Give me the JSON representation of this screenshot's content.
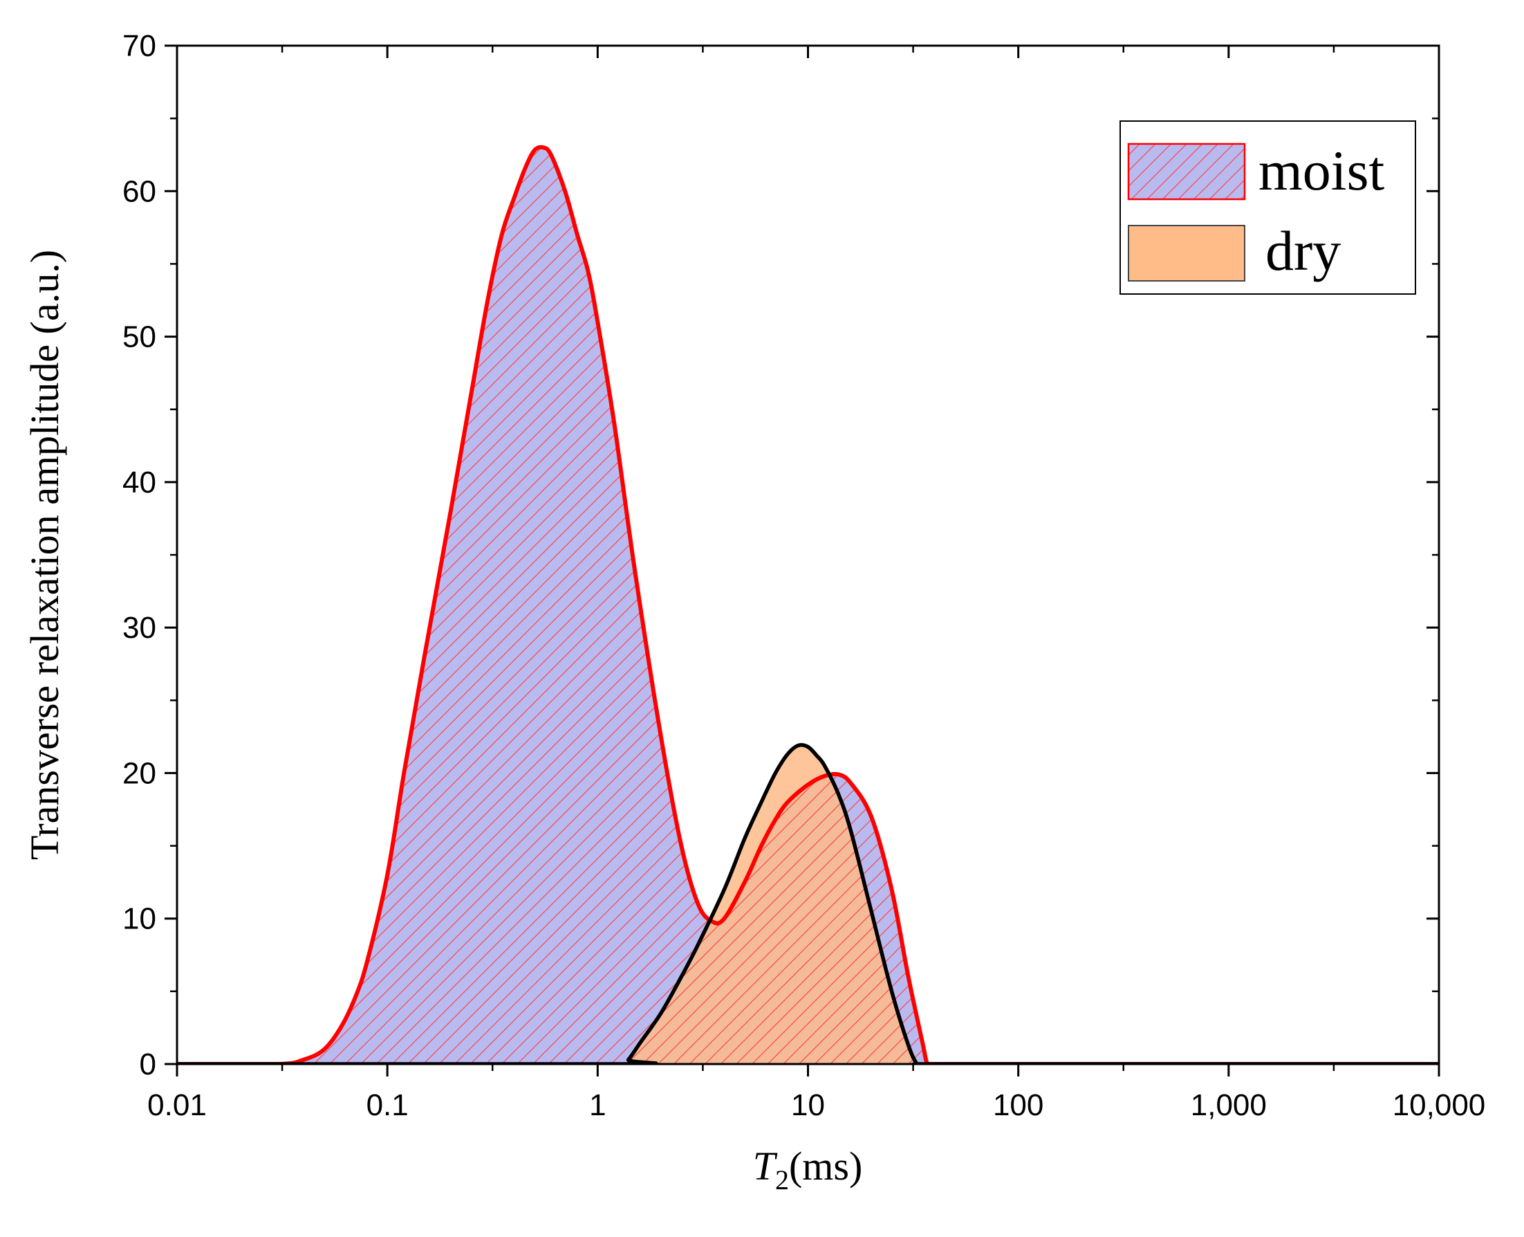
{
  "chart_data": {
    "type": "area",
    "xscale": "log",
    "xlim": [
      0.01,
      10000
    ],
    "ylim": [
      0,
      70
    ],
    "xticks": [
      0.01,
      0.1,
      1,
      10,
      100,
      1000,
      10000
    ],
    "xtick_labels": [
      "0.01",
      "0.1",
      "1",
      "10",
      "100",
      "1,000",
      "10,000"
    ],
    "yticks": [
      0,
      10,
      20,
      30,
      40,
      50,
      60,
      70
    ],
    "ytick_labels": [
      "0",
      "10",
      "20",
      "30",
      "40",
      "50",
      "60",
      "70"
    ],
    "xlabel_italic": "T",
    "xlabel_subscript": "2",
    "xlabel_rest": "(ms)",
    "ylabel": "Transverse relaxation amplitude (a.u.)",
    "legend_position": "top-right",
    "grid": false,
    "series": [
      {
        "name": "moist",
        "line_color": "#ff0000",
        "fill_color": "#b9baf0",
        "hatch_color": "#ff3b3b",
        "hatched": true,
        "x": [
          0.01,
          0.03,
          0.04,
          0.05,
          0.06,
          0.07,
          0.08,
          0.1,
          0.12,
          0.15,
          0.2,
          0.25,
          0.3,
          0.35,
          0.4,
          0.45,
          0.5,
          0.55,
          0.6,
          0.7,
          0.8,
          0.9,
          1.0,
          1.2,
          1.5,
          2.0,
          2.5,
          3.0,
          3.5,
          4.0,
          5.0,
          6.0,
          7.0,
          8.0,
          10.0,
          12.0,
          14.0,
          16.0,
          20.0,
          25.0,
          30.0,
          35.0,
          37.0,
          40.0,
          100.0,
          1000.0,
          10000.0
        ],
        "y": [
          0,
          0,
          0.3,
          1.0,
          2.5,
          4.5,
          7.0,
          13.0,
          20.0,
          28.0,
          38.0,
          46.0,
          52.5,
          57.0,
          59.5,
          61.5,
          62.8,
          63.0,
          62.5,
          60.0,
          57.0,
          54.5,
          51.0,
          44.0,
          34.0,
          22.5,
          15.0,
          11.0,
          9.8,
          10.0,
          12.5,
          15.0,
          16.8,
          18.0,
          19.2,
          19.8,
          19.9,
          19.3,
          17.0,
          12.0,
          6.0,
          1.5,
          0,
          0,
          0,
          0,
          0
        ]
      },
      {
        "name": "dry",
        "line_color": "#000000",
        "fill_color": "#ffbb88",
        "hatched": false,
        "x": [
          0.01,
          1.3,
          1.4,
          1.6,
          2.0,
          2.5,
          3.0,
          4.0,
          5.0,
          6.0,
          7.0,
          8.0,
          9.0,
          10.0,
          11.0,
          12.0,
          14.0,
          16.0,
          20.0,
          25.0,
          30.0,
          33.0,
          35.0,
          100.0,
          1000.0,
          10000.0
        ],
        "y": [
          0,
          0,
          0.3,
          1.5,
          3.5,
          6.0,
          8.2,
          12.0,
          15.5,
          18.0,
          20.0,
          21.3,
          21.9,
          21.8,
          21.2,
          20.5,
          18.5,
          16.0,
          10.5,
          5.0,
          1.3,
          0,
          0,
          0,
          0,
          0
        ]
      }
    ]
  }
}
